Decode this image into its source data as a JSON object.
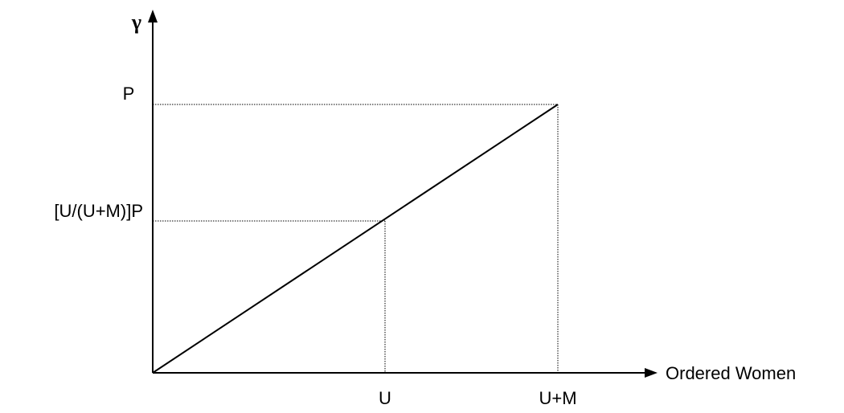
{
  "axes": {
    "y_label": "γ",
    "x_label": "Ordered Women"
  },
  "y_labels": [
    "P",
    "[U/(U+M)]P"
  ],
  "x_labels": [
    "U",
    "U+M"
  ]
}
